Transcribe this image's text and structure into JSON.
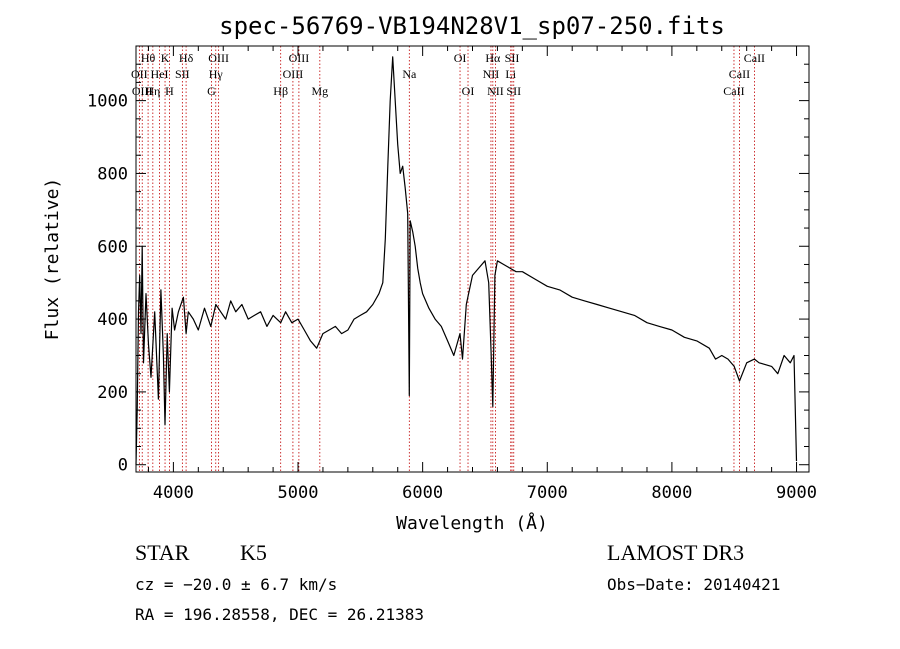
{
  "chart_data": {
    "type": "line",
    "title": "spec-56769-VB194N28V1_sp07-250.fits",
    "xlabel": "Wavelength (Å)",
    "ylabel": "Flux (relative)",
    "xlim": [
      3700,
      9100
    ],
    "ylim": [
      -20,
      1150
    ],
    "xticks": [
      4000,
      5000,
      6000,
      7000,
      8000,
      9000
    ],
    "yticks": [
      0,
      200,
      400,
      600,
      800,
      1000
    ],
    "grid": false,
    "series": [
      {
        "x": [
          3700,
          3710,
          3720,
          3730,
          3740,
          3750,
          3760,
          3780,
          3800,
          3820,
          3850,
          3880,
          3900,
          3920,
          3933,
          3950,
          3968,
          3990,
          4010,
          4040,
          4080,
          4102,
          4120,
          4160,
          4200,
          4250,
          4300,
          4340,
          4380,
          4420,
          4460,
          4500,
          4550,
          4600,
          4650,
          4700,
          4750,
          4800,
          4861,
          4900,
          4950,
          5000,
          5050,
          5100,
          5150,
          5175,
          5200,
          5250,
          5300,
          5350,
          5400,
          5450,
          5500,
          5550,
          5600,
          5650,
          5680,
          5700,
          5720,
          5740,
          5760,
          5780,
          5800,
          5820,
          5840,
          5860,
          5880,
          5893,
          5900,
          5920,
          5940,
          5960,
          5980,
          6000,
          6050,
          6100,
          6150,
          6200,
          6250,
          6300,
          6320,
          6350,
          6400,
          6450,
          6500,
          6530,
          6550,
          6563,
          6580,
          6600,
          6650,
          6700,
          6750,
          6800,
          6900,
          7000,
          7100,
          7200,
          7300,
          7400,
          7500,
          7600,
          7700,
          7800,
          7900,
          8000,
          8100,
          8200,
          8300,
          8350,
          8400,
          8450,
          8500,
          8542,
          8600,
          8662,
          8700,
          8800,
          8850,
          8900,
          8950,
          8980,
          9000
        ],
        "values": [
          0,
          150,
          420,
          520,
          360,
          600,
          280,
          470,
          330,
          240,
          420,
          180,
          480,
          300,
          110,
          360,
          200,
          430,
          370,
          420,
          460,
          360,
          420,
          400,
          370,
          430,
          380,
          440,
          420,
          400,
          450,
          420,
          440,
          400,
          410,
          420,
          380,
          410,
          390,
          420,
          390,
          400,
          370,
          340,
          320,
          340,
          360,
          370,
          380,
          360,
          370,
          400,
          410,
          420,
          440,
          470,
          500,
          620,
          820,
          1000,
          1120,
          1000,
          880,
          800,
          820,
          760,
          690,
          190,
          670,
          640,
          600,
          540,
          500,
          470,
          430,
          400,
          380,
          340,
          300,
          360,
          290,
          440,
          520,
          540,
          560,
          500,
          300,
          160,
          520,
          560,
          550,
          540,
          530,
          530,
          510,
          490,
          480,
          460,
          450,
          440,
          430,
          420,
          410,
          390,
          380,
          370,
          350,
          340,
          320,
          290,
          300,
          290,
          270,
          230,
          280,
          290,
          280,
          270,
          250,
          300,
          280,
          300,
          10
        ]
      }
    ],
    "line_markers": [
      {
        "label": "Hθ",
        "wavelength": 3797,
        "row": 1
      },
      {
        "label": "OII",
        "wavelength": 3727,
        "row": 2
      },
      {
        "label": "OIII",
        "wavelength": 3750,
        "row": 3
      },
      {
        "label": "K",
        "wavelength": 3933,
        "row": 1
      },
      {
        "label": "HeI",
        "wavelength": 3889,
        "row": 2
      },
      {
        "label": "Hη",
        "wavelength": 3835,
        "row": 3
      },
      {
        "label": "Hδ",
        "wavelength": 4102,
        "row": 1
      },
      {
        "label": "SII",
        "wavelength": 4072,
        "row": 2
      },
      {
        "label": "H",
        "wavelength": 3968,
        "row": 3
      },
      {
        "label": "OIII",
        "wavelength": 4363,
        "row": 1
      },
      {
        "label": "Hγ",
        "wavelength": 4340,
        "row": 2
      },
      {
        "label": "G",
        "wavelength": 4305,
        "row": 3
      },
      {
        "label": "OIII",
        "wavelength": 5007,
        "row": 1
      },
      {
        "label": "OIII",
        "wavelength": 4959,
        "row": 2
      },
      {
        "label": "Hβ",
        "wavelength": 4861,
        "row": 3
      },
      {
        "label": "Mg",
        "wavelength": 5175,
        "row": 3
      },
      {
        "label": "Na",
        "wavelength": 5893,
        "row": 2
      },
      {
        "label": "OI",
        "wavelength": 6300,
        "row": 1
      },
      {
        "label": "OI",
        "wavelength": 6364,
        "row": 3
      },
      {
        "label": "Hα",
        "wavelength": 6563,
        "row": 1
      },
      {
        "label": "NII",
        "wavelength": 6548,
        "row": 2
      },
      {
        "label": "NII",
        "wavelength": 6584,
        "row": 3
      },
      {
        "label": "SII",
        "wavelength": 6717,
        "row": 1
      },
      {
        "label": "Li",
        "wavelength": 6707,
        "row": 2
      },
      {
        "label": "SII",
        "wavelength": 6731,
        "row": 3
      },
      {
        "label": "CaII",
        "wavelength": 8662,
        "row": 1
      },
      {
        "label": "CaII",
        "wavelength": 8542,
        "row": 2
      },
      {
        "label": "CaII",
        "wavelength": 8498,
        "row": 3
      }
    ]
  },
  "info": {
    "class": "STAR",
    "subclass": "K5",
    "survey": "LAMOST DR3",
    "cz": "cz = −20.0 ± 6.7 km/s",
    "obs_date": "Obs−Date: 20140421",
    "coords": "RA = 196.28558, DEC =  26.21383"
  },
  "colors": {
    "line": "#000000",
    "marker": "#c00000"
  }
}
